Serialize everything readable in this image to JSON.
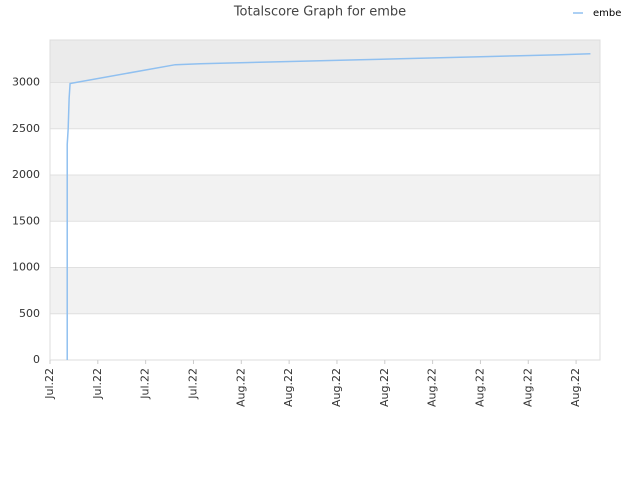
{
  "chart_data": {
    "type": "line",
    "title": "Totalscore Graph for embe",
    "x": [
      0.36,
      0.36,
      0.38,
      0.4,
      0.42,
      2.62,
      3.14,
      3.97,
      4.81,
      5.65,
      6.49,
      7.32,
      8.16,
      9.0,
      9.83,
      10.67,
      11.3
    ],
    "series": [
      {
        "name": "embe",
        "color": "#90c0f0",
        "values": [
          0,
          2330,
          2500,
          2830,
          2990,
          3193,
          3203,
          3214,
          3225,
          3236,
          3246,
          3257,
          3268,
          3279,
          3290,
          3300,
          3311
        ]
      }
    ],
    "xlim": [
      0,
      11.5
    ],
    "xticks": [
      {
        "value": 0,
        "label": "Jul.22"
      },
      {
        "value": 1,
        "label": "Jul.22"
      },
      {
        "value": 2,
        "label": "Jul.22"
      },
      {
        "value": 3,
        "label": "Jul.22"
      },
      {
        "value": 4,
        "label": "Aug.22"
      },
      {
        "value": 5,
        "label": "Aug.22"
      },
      {
        "value": 6,
        "label": "Aug.22"
      },
      {
        "value": 7,
        "label": "Aug.22"
      },
      {
        "value": 8,
        "label": "Aug.22"
      },
      {
        "value": 9,
        "label": "Aug.22"
      },
      {
        "value": 10,
        "label": "Aug.22"
      },
      {
        "value": 11,
        "label": "Aug.22"
      }
    ],
    "ylim": [
      0,
      3460
    ],
    "yticks": [
      0,
      500,
      1000,
      1500,
      2000,
      2500,
      3000
    ],
    "grid": true,
    "legend": "top-right"
  }
}
